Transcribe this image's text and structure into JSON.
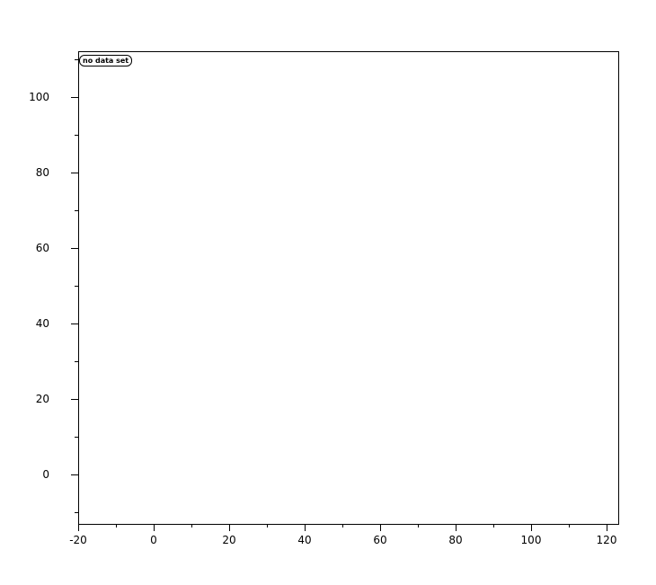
{
  "legend": {
    "label": "no data set"
  },
  "chart_data": {
    "type": "line",
    "title": "",
    "series": [],
    "legend_entries": [
      "no data set"
    ],
    "legend_position": "upper-left",
    "grid": false,
    "background": "#ffffff",
    "axis_color": "#000000",
    "xlim": [
      -20,
      123.1
    ],
    "ylim": [
      -13.1,
      112.15
    ],
    "x_major_ticks": [
      -20,
      0,
      20,
      40,
      60,
      80,
      100,
      120
    ],
    "x_tick_labels": [
      "-20",
      "0",
      "20",
      "40",
      "60",
      "80",
      "100",
      "120"
    ],
    "x_minor_ticks": [
      -10,
      10,
      30,
      50,
      70,
      90,
      110
    ],
    "y_major_ticks": [
      0,
      20,
      40,
      60,
      80,
      100
    ],
    "y_tick_labels": [
      "0",
      "20",
      "40",
      "60",
      "80",
      "100"
    ],
    "y_minor_ticks": [
      -10,
      10,
      30,
      50,
      70,
      90,
      110
    ]
  }
}
